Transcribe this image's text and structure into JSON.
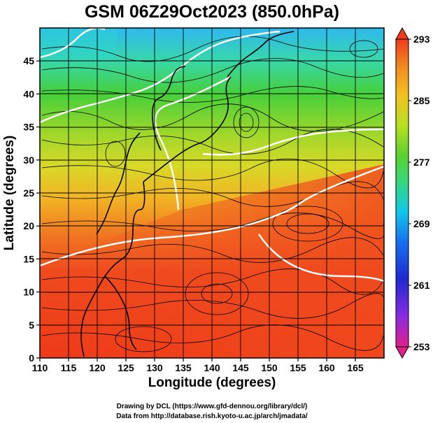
{
  "title": "GSM 06Z29Oct2023 (850.0hPa)",
  "map": {
    "x_axis": {
      "label": "Longitude (degrees)",
      "range": [
        110,
        170
      ],
      "ticks": [
        110,
        115,
        120,
        125,
        130,
        135,
        140,
        145,
        150,
        155,
        160,
        165
      ]
    },
    "y_axis": {
      "label": "Latitude  (degrees)",
      "range": [
        0,
        50
      ],
      "ticks": [
        0,
        5,
        10,
        15,
        20,
        25,
        30,
        35,
        40,
        45
      ]
    },
    "grid": true,
    "field": "temperature",
    "overlays": [
      "streamlines",
      "coastlines",
      "white contour lines"
    ]
  },
  "colorbar": {
    "range": [
      253,
      293
    ],
    "labels": [
      "293",
      "285",
      "277",
      "269",
      "261",
      "253"
    ],
    "colors": [
      "#e0208c",
      "#8a2be2",
      "#1e2ad0",
      "#1870f0",
      "#10c8e8",
      "#38d878",
      "#5ad030",
      "#b8e020",
      "#f4c020",
      "#f08a20",
      "#f03c1c"
    ]
  },
  "credits": [
    "Drawing by DCL (https://www.gfd-dennou.org/library/dcl/)",
    "Data from http://database.rish.kyoto-u.ac.jp/arch/jmadata/"
  ]
}
